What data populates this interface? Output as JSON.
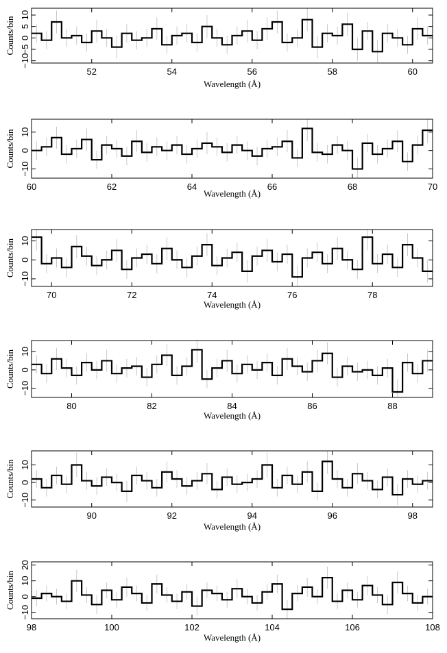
{
  "chart_data": [
    {
      "type": "step",
      "xlabel": "Wavelength (Å)",
      "ylabel": "Counts/bin",
      "xlim": [
        50.5,
        60.5
      ],
      "ylim": [
        -11,
        13
      ],
      "xticks": [
        52,
        54,
        56,
        58,
        60
      ],
      "yticks": [
        {
          "value": -10,
          "label": "−10"
        },
        {
          "value": -5,
          "label": "−5"
        },
        0,
        5,
        10
      ],
      "x": [
        50.5,
        50.75,
        51,
        51.25,
        51.5,
        51.75,
        52,
        52.25,
        52.5,
        52.75,
        53,
        53.25,
        53.5,
        53.75,
        54,
        54.25,
        54.5,
        54.75,
        55,
        55.25,
        55.5,
        55.75,
        56,
        56.25,
        56.5,
        56.75,
        57,
        57.25,
        57.5,
        57.75,
        58,
        58.25,
        58.5,
        58.75,
        59,
        59.25,
        59.5,
        59.75,
        60,
        60.25
      ],
      "values": [
        2,
        -1,
        7,
        0,
        1,
        -2,
        3,
        0,
        -4,
        2,
        -1,
        0,
        4,
        -3,
        1,
        2,
        -2,
        5,
        0,
        -3,
        1,
        3,
        -1,
        4,
        7,
        -2,
        0,
        8,
        -4,
        2,
        1,
        6,
        -5,
        3,
        -6,
        2,
        0,
        -3,
        4,
        1
      ],
      "errors": [
        4,
        4,
        5,
        4,
        4,
        4,
        5,
        4,
        5,
        4,
        4,
        4,
        5,
        4,
        4,
        4,
        4,
        5,
        4,
        4,
        4,
        5,
        4,
        5,
        5,
        4,
        4,
        5,
        5,
        4,
        4,
        5,
        5,
        4,
        5,
        4,
        4,
        4,
        5,
        4
      ]
    },
    {
      "type": "step",
      "xlabel": "Wavelength (Å)",
      "ylabel": "Counts/bin",
      "xlim": [
        60,
        70
      ],
      "ylim": [
        -15,
        17
      ],
      "xticks": [
        60,
        62,
        64,
        66,
        68,
        70
      ],
      "yticks": [
        {
          "value": -10,
          "label": "−10"
        },
        0,
        10
      ],
      "x": [
        60,
        60.25,
        60.5,
        60.75,
        61,
        61.25,
        61.5,
        61.75,
        62,
        62.25,
        62.5,
        62.75,
        63,
        63.25,
        63.5,
        63.75,
        64,
        64.25,
        64.5,
        64.75,
        65,
        65.25,
        65.5,
        65.75,
        66,
        66.25,
        66.5,
        66.75,
        67,
        67.25,
        67.5,
        67.75,
        68,
        68.25,
        68.5,
        68.75,
        69,
        69.25,
        69.5,
        69.75
      ],
      "values": [
        0,
        2,
        7,
        -2,
        1,
        6,
        -5,
        3,
        1,
        -3,
        5,
        -1,
        2,
        0,
        3,
        -2,
        1,
        4,
        2,
        -1,
        3,
        0,
        -3,
        1,
        2,
        5,
        -4,
        12,
        -1,
        -2,
        3,
        0,
        -10,
        4,
        -2,
        1,
        5,
        -6,
        3,
        11
      ],
      "errors": [
        5,
        5,
        6,
        5,
        5,
        6,
        5,
        5,
        5,
        5,
        6,
        5,
        5,
        5,
        5,
        5,
        5,
        6,
        5,
        5,
        5,
        5,
        5,
        5,
        5,
        6,
        5,
        7,
        5,
        5,
        5,
        5,
        6,
        5,
        5,
        5,
        6,
        5,
        5,
        7
      ]
    },
    {
      "type": "step",
      "xlabel": "Wavelength (Å)",
      "ylabel": "Counts/bin",
      "xlim": [
        69.5,
        79.5
      ],
      "ylim": [
        -14,
        16
      ],
      "xticks": [
        70,
        72,
        74,
        76,
        78
      ],
      "yticks": [
        {
          "value": -10,
          "label": "−10"
        },
        0,
        10
      ],
      "x": [
        69.5,
        69.75,
        70,
        70.25,
        70.5,
        70.75,
        71,
        71.25,
        71.5,
        71.75,
        72,
        72.25,
        72.5,
        72.75,
        73,
        73.25,
        73.5,
        73.75,
        74,
        74.25,
        74.5,
        74.75,
        75,
        75.25,
        75.5,
        75.75,
        76,
        76.25,
        76.5,
        76.75,
        77,
        77.25,
        77.5,
        77.75,
        78,
        78.25,
        78.5,
        78.75,
        79,
        79.25
      ],
      "values": [
        12,
        -2,
        1,
        -4,
        7,
        2,
        -3,
        0,
        5,
        -5,
        1,
        3,
        -2,
        6,
        0,
        -4,
        2,
        8,
        -3,
        1,
        4,
        -6,
        2,
        5,
        -1,
        3,
        -9,
        1,
        4,
        -2,
        6,
        0,
        -5,
        12,
        -2,
        3,
        -4,
        8,
        1,
        -6
      ],
      "errors": [
        7,
        5,
        5,
        5,
        6,
        5,
        5,
        5,
        6,
        5,
        5,
        5,
        5,
        6,
        5,
        5,
        5,
        6,
        5,
        5,
        5,
        6,
        5,
        6,
        5,
        5,
        6,
        5,
        5,
        5,
        6,
        5,
        5,
        7,
        5,
        5,
        5,
        6,
        5,
        6
      ]
    },
    {
      "type": "step",
      "xlabel": "Wavelength (Å)",
      "ylabel": "Counts/bin",
      "xlim": [
        79,
        89
      ],
      "ylim": [
        -15,
        16
      ],
      "xticks": [
        80,
        82,
        84,
        86,
        88
      ],
      "yticks": [
        {
          "value": -10,
          "label": "−10"
        },
        0,
        10
      ],
      "x": [
        79,
        79.25,
        79.5,
        79.75,
        80,
        80.25,
        80.5,
        80.75,
        81,
        81.25,
        81.5,
        81.75,
        82,
        82.25,
        82.5,
        82.75,
        83,
        83.25,
        83.5,
        83.75,
        84,
        84.25,
        84.5,
        84.75,
        85,
        85.25,
        85.5,
        85.75,
        86,
        86.25,
        86.5,
        86.75,
        87,
        87.25,
        87.5,
        87.75,
        88,
        88.25,
        88.5,
        88.75
      ],
      "values": [
        3,
        -2,
        6,
        1,
        -3,
        4,
        0,
        5,
        -2,
        1,
        2,
        -4,
        3,
        8,
        -3,
        2,
        11,
        -5,
        1,
        5,
        -2,
        3,
        0,
        4,
        -3,
        6,
        2,
        -1,
        5,
        9,
        -4,
        2,
        -1,
        0,
        -3,
        1,
        -12,
        4,
        -2,
        5
      ],
      "errors": [
        5,
        5,
        6,
        5,
        5,
        5,
        5,
        6,
        5,
        5,
        5,
        5,
        5,
        6,
        5,
        5,
        7,
        5,
        5,
        6,
        5,
        5,
        5,
        5,
        5,
        6,
        5,
        5,
        6,
        6,
        5,
        5,
        5,
        5,
        5,
        5,
        7,
        5,
        5,
        6
      ]
    },
    {
      "type": "step",
      "xlabel": "Wavelength (Å)",
      "ylabel": "Counts/bin",
      "xlim": [
        88.5,
        98.5
      ],
      "ylim": [
        -14,
        18
      ],
      "xticks": [
        90,
        92,
        94,
        96,
        98
      ],
      "yticks": [
        {
          "value": -10,
          "label": "−10"
        },
        0,
        10
      ],
      "x": [
        88.5,
        88.75,
        89,
        89.25,
        89.5,
        89.75,
        90,
        90.25,
        90.5,
        90.75,
        91,
        91.25,
        91.5,
        91.75,
        92,
        92.25,
        92.5,
        92.75,
        93,
        93.25,
        93.5,
        93.75,
        94,
        94.25,
        94.5,
        94.75,
        95,
        95.25,
        95.5,
        95.75,
        96,
        96.25,
        96.5,
        96.75,
        97,
        97.25,
        97.5,
        97.75,
        98,
        98.25
      ],
      "values": [
        2,
        -3,
        4,
        -1,
        10,
        1,
        -2,
        3,
        0,
        -5,
        4,
        1,
        -3,
        6,
        2,
        -2,
        1,
        5,
        -4,
        3,
        -1,
        0,
        2,
        10,
        -3,
        4,
        -1,
        6,
        -5,
        12,
        2,
        -3,
        5,
        1,
        -4,
        3,
        -7,
        2,
        -1,
        1
      ],
      "errors": [
        5,
        5,
        5,
        5,
        7,
        5,
        5,
        5,
        5,
        6,
        5,
        5,
        5,
        6,
        5,
        5,
        5,
        6,
        5,
        5,
        5,
        5,
        5,
        7,
        5,
        5,
        5,
        6,
        5,
        7,
        5,
        5,
        6,
        5,
        5,
        5,
        6,
        5,
        5,
        5
      ]
    },
    {
      "type": "step",
      "xlabel": "Wavelength (Å)",
      "ylabel": "Counts/bin",
      "xlim": [
        98,
        108
      ],
      "ylim": [
        -14,
        22
      ],
      "xticks": [
        98,
        100,
        102,
        104,
        106,
        108
      ],
      "yticks": [
        {
          "value": -10,
          "label": "−10"
        },
        0,
        10,
        20
      ],
      "x": [
        98,
        98.25,
        98.5,
        98.75,
        99,
        99.25,
        99.5,
        99.75,
        100,
        100.25,
        100.5,
        100.75,
        101,
        101.25,
        101.5,
        101.75,
        102,
        102.25,
        102.5,
        102.75,
        103,
        103.25,
        103.5,
        103.75,
        104,
        104.25,
        104.5,
        104.75,
        105,
        105.25,
        105.5,
        105.75,
        106,
        106.25,
        106.5,
        106.75,
        107,
        107.25,
        107.5,
        107.75
      ],
      "values": [
        -1,
        2,
        0,
        -3,
        10,
        1,
        -5,
        4,
        -2,
        6,
        2,
        -4,
        8,
        1,
        -3,
        3,
        -6,
        4,
        2,
        -2,
        5,
        0,
        -4,
        3,
        8,
        -8,
        2,
        6,
        0,
        12,
        -3,
        4,
        -2,
        7,
        1,
        -5,
        9,
        2,
        -4,
        0
      ],
      "errors": [
        5,
        5,
        5,
        5,
        7,
        5,
        6,
        5,
        5,
        6,
        5,
        5,
        6,
        5,
        5,
        5,
        6,
        5,
        5,
        5,
        6,
        5,
        5,
        5,
        6,
        6,
        5,
        6,
        5,
        7,
        5,
        5,
        5,
        6,
        5,
        6,
        7,
        5,
        5,
        5
      ]
    }
  ]
}
